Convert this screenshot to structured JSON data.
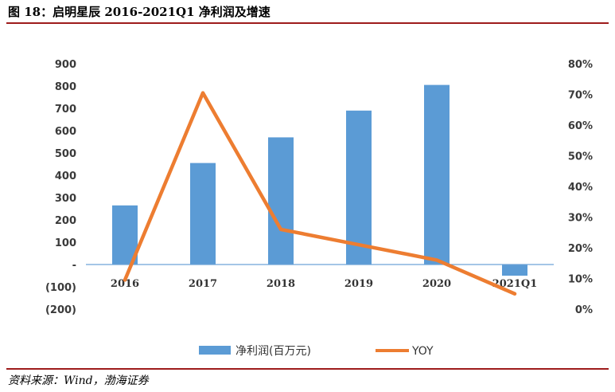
{
  "figure_title": "图 18：启明星辰 2016-2021Q1 净利润及增速",
  "source": "资料来源：Wind，渤海证券",
  "colors": {
    "bar": "#5b9bd5",
    "line": "#ed7d31",
    "axis": "#6ea3d6",
    "rule": "#9e1b1b"
  },
  "chart_data": {
    "type": "bar",
    "categories": [
      "2016",
      "2017",
      "2018",
      "2019",
      "2020",
      "2021Q1"
    ],
    "series": [
      {
        "name": "净利润(百万元)",
        "type": "bar",
        "axis": "left",
        "values": [
          265,
          455,
          570,
          690,
          805,
          -50
        ]
      },
      {
        "name": "YOY",
        "type": "line",
        "axis": "right",
        "values": [
          0.095,
          0.705,
          0.26,
          0.21,
          0.16,
          0.05
        ]
      }
    ],
    "y_left": {
      "ylim": [
        -200,
        900
      ],
      "ticks": [
        900,
        800,
        700,
        600,
        500,
        400,
        300,
        200,
        100,
        0,
        -100,
        -200
      ],
      "tick_labels": [
        "900",
        "800",
        "700",
        "600",
        "500",
        "400",
        "300",
        "200",
        "100",
        "-",
        "(100)",
        "(200)"
      ]
    },
    "y_right": {
      "ylim": [
        0,
        0.8
      ],
      "ticks": [
        0.8,
        0.7,
        0.6,
        0.5,
        0.4,
        0.3,
        0.2,
        0.1,
        0
      ],
      "tick_labels": [
        "80%",
        "70%",
        "60%",
        "50%",
        "40%",
        "30%",
        "20%",
        "10%",
        "0%"
      ]
    },
    "legend": {
      "position": "bottom",
      "entries": [
        "净利润(百万元)",
        "YOY"
      ]
    },
    "grid": false
  }
}
